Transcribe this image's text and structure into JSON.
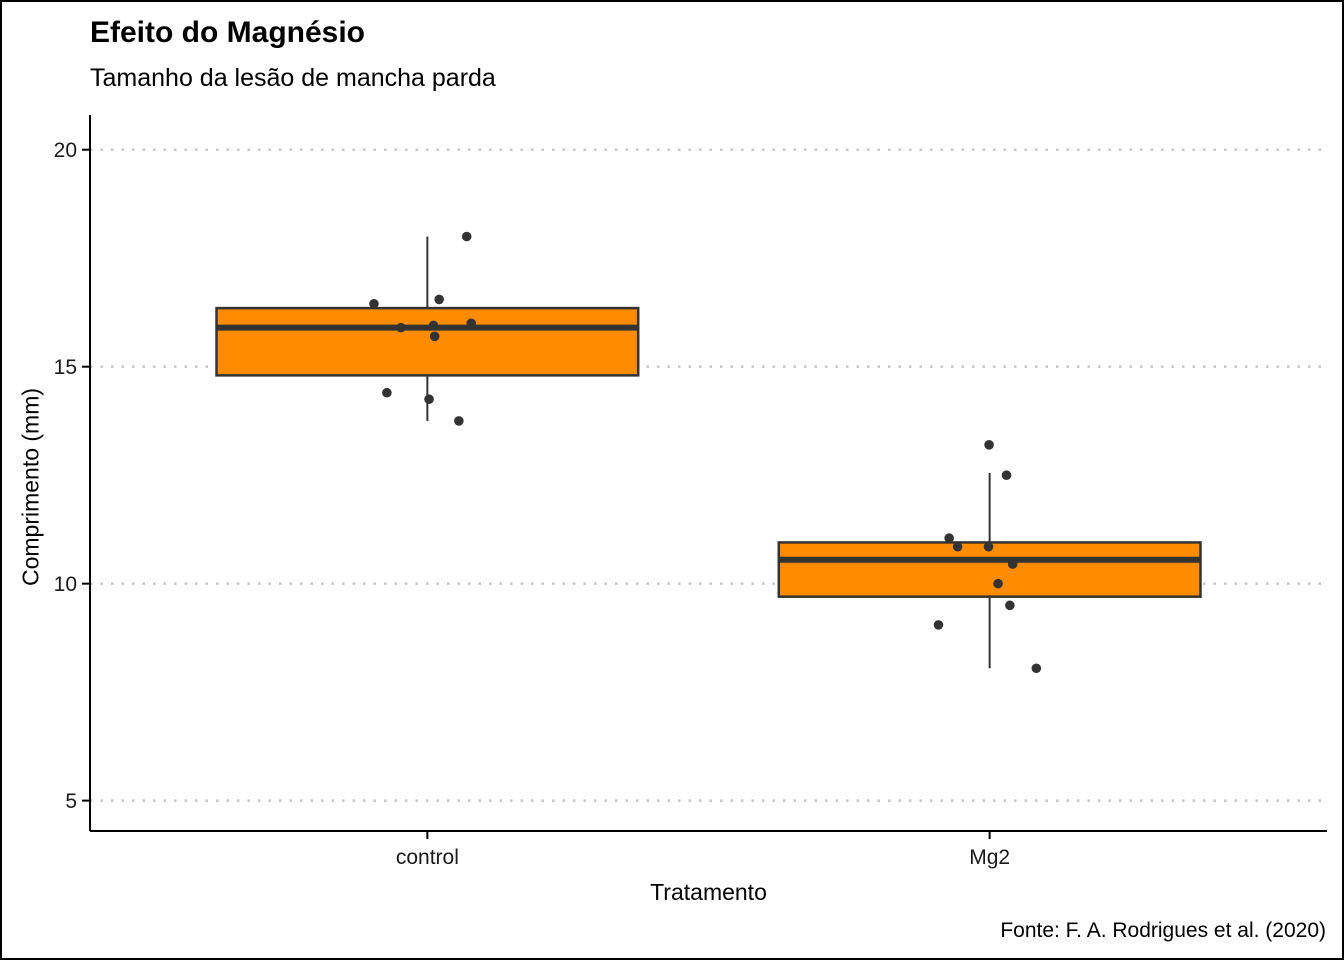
{
  "chart_data": {
    "type": "boxplot",
    "title": "Efeito do Magnésio",
    "subtitle": "Tamanho da lesão de mancha parda",
    "caption": "Fonte: F. A. Rodrigues et al. (2020)",
    "xlabel": "Tratamento",
    "ylabel": "Comprimento (mm)",
    "categories": [
      "control",
      "Mg2"
    ],
    "y_ticks": [
      20,
      15,
      10,
      5
    ],
    "ylim": [
      4.3,
      20.8
    ],
    "grid": "horizontal-major-dotted",
    "legend": "none",
    "boxes": [
      {
        "category": "control",
        "whisker_low": 13.75,
        "q1": 14.8,
        "median": 15.9,
        "q3": 16.35,
        "whisker_high": 18.0
      },
      {
        "category": "Mg2",
        "whisker_low": 8.05,
        "q1": 9.7,
        "median": 10.55,
        "q3": 10.95,
        "whisker_high": 12.55
      }
    ],
    "jitter_points": [
      {
        "category": "control",
        "points": [
          [
            0.07,
            18.0
          ],
          [
            -0.095,
            16.45
          ],
          [
            0.021,
            16.55
          ],
          [
            0.078,
            16.0
          ],
          [
            0.011,
            15.95
          ],
          [
            -0.047,
            15.9
          ],
          [
            0.013,
            15.7
          ],
          [
            -0.072,
            14.4
          ],
          [
            0.003,
            14.25
          ],
          [
            0.056,
            13.75
          ]
        ]
      },
      {
        "category": "Mg2",
        "points": [
          [
            -0.001,
            13.2
          ],
          [
            0.03,
            12.5
          ],
          [
            -0.072,
            11.05
          ],
          [
            -0.057,
            10.85
          ],
          [
            -0.002,
            10.85
          ],
          [
            0.041,
            10.45
          ],
          [
            0.015,
            10.0
          ],
          [
            0.036,
            9.5
          ],
          [
            -0.091,
            9.05
          ],
          [
            0.083,
            8.05
          ]
        ]
      }
    ],
    "colors": {
      "box_fill": "#FF8C00",
      "box_stroke": "#333333",
      "point": "#333333",
      "grid": "#C4C4C4",
      "axis": "#000000",
      "text": "#1a1a1a"
    }
  }
}
